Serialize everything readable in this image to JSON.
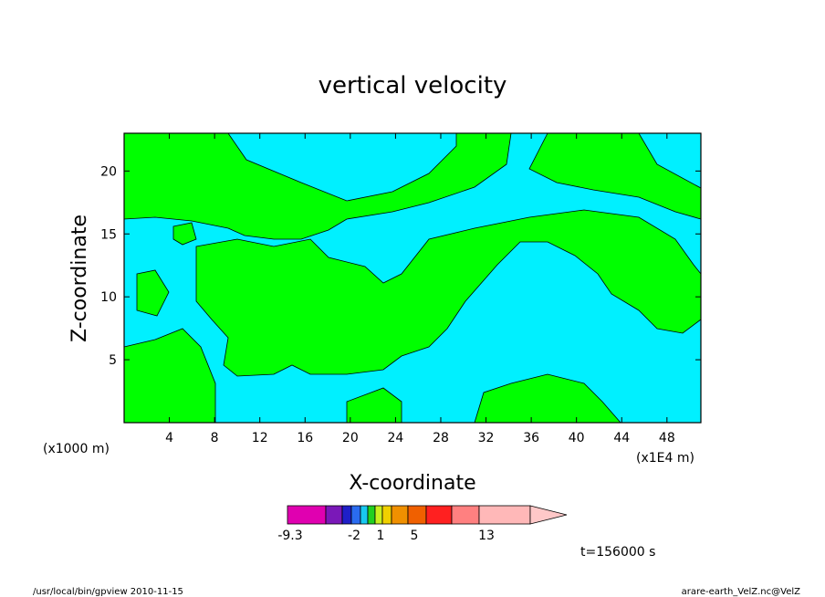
{
  "chart_data": {
    "type": "heatmap",
    "title": "vertical velocity",
    "xlabel": "X-coordinate",
    "ylabel": "Z-coordinate",
    "x_unit_label": "(x1E4 m)",
    "y_unit_label": "(x1000 m)",
    "xlim": [
      0,
      51
    ],
    "ylim": [
      0,
      23
    ],
    "x_ticks": [
      "4",
      "8",
      "12",
      "16",
      "20",
      "24",
      "28",
      "32",
      "36",
      "40",
      "44",
      "48"
    ],
    "x_tick_values": [
      4,
      8,
      12,
      16,
      20,
      24,
      28,
      32,
      36,
      40,
      44,
      48
    ],
    "y_ticks": [
      "5",
      "10",
      "15",
      "20"
    ],
    "y_tick_values": [
      5,
      10,
      15,
      20
    ],
    "colorbar": {
      "labels": [
        "-9.3",
        "-2",
        "1",
        "5",
        "13"
      ],
      "colors": [
        "#e000b0",
        "#7a18b8",
        "#1f1fc8",
        "#2a6cf0",
        "#18c8f0",
        "#20d020",
        "#c8f020",
        "#f0d000",
        "#f09000",
        "#f06000",
        "#ff2020",
        "#ff8080",
        "#ffb8b8",
        "#ffc8c8"
      ]
    },
    "field_colors": {
      "positive": "#00ff00",
      "negative": "#00f0ff"
    },
    "time_label": "t=156000 s",
    "footer_left": "/usr/local/bin/gpview   2010-11-15",
    "footer_right": "arare-earth_VelZ.nc@VelZ"
  }
}
